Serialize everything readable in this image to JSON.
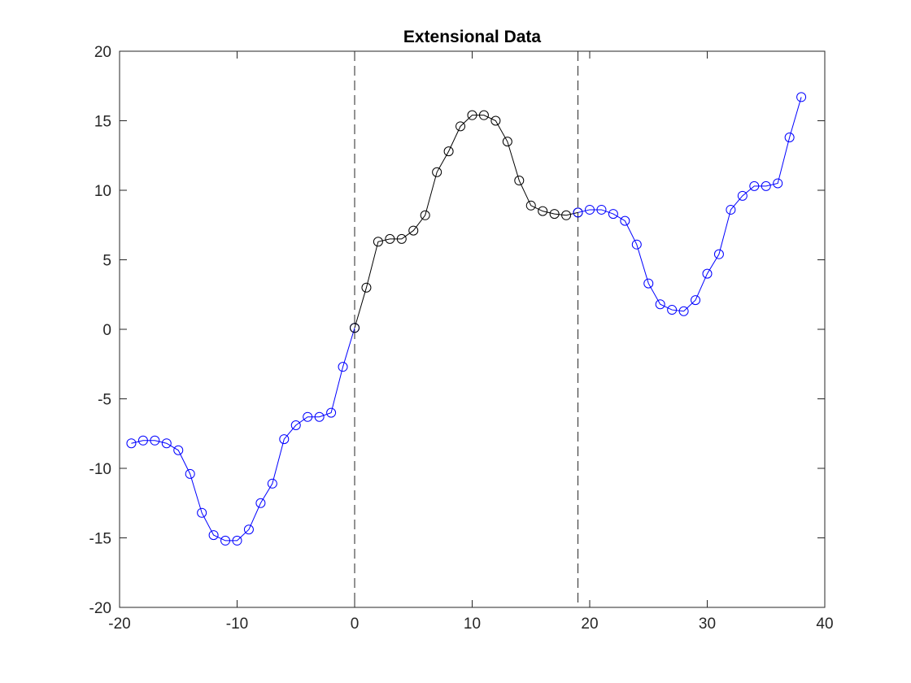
{
  "chart_data": {
    "type": "line",
    "title": "Extensional Data",
    "xlabel": "",
    "ylabel": "",
    "xlim": [
      -20,
      40
    ],
    "ylim": [
      -20,
      20
    ],
    "xticks": [
      -20,
      -10,
      0,
      10,
      20,
      30,
      40
    ],
    "yticks": [
      -20,
      -15,
      -10,
      -5,
      0,
      5,
      10,
      15,
      20
    ],
    "grid": false,
    "vlines": [
      0,
      19
    ],
    "series": [
      {
        "color": "#0000ff",
        "marker": "circle",
        "x": [
          -19,
          -18,
          -17,
          -16,
          -15,
          -14,
          -13,
          -12,
          -11,
          -10,
          -9,
          -8,
          -7,
          -6,
          -5,
          -4,
          -3,
          -2,
          -1,
          0
        ],
        "y": [
          -8.2,
          -8.0,
          -8.0,
          -8.2,
          -8.7,
          -10.4,
          -13.2,
          -14.8,
          -15.2,
          -15.2,
          -14.4,
          -12.5,
          -11.1,
          -7.9,
          -6.9,
          -6.3,
          -6.3,
          -6.0,
          -2.7,
          0.1
        ]
      },
      {
        "color": "#000000",
        "marker": "circle",
        "x": [
          0,
          1,
          2,
          3,
          4,
          5,
          6,
          7,
          8,
          9,
          10,
          11,
          12,
          13,
          14,
          15,
          16,
          17,
          18,
          19
        ],
        "y": [
          0.1,
          3.0,
          6.3,
          6.5,
          6.5,
          7.1,
          8.2,
          11.3,
          12.8,
          14.6,
          15.4,
          15.4,
          15.0,
          13.5,
          10.7,
          8.9,
          8.5,
          8.3,
          8.2,
          8.4
        ]
      },
      {
        "color": "#0000ff",
        "marker": "circle",
        "x": [
          19,
          20,
          21,
          22,
          23,
          24,
          25,
          26,
          27,
          28,
          29,
          30,
          31,
          32,
          33,
          34,
          35,
          36,
          37,
          38
        ],
        "y": [
          8.4,
          8.6,
          8.6,
          8.3,
          7.8,
          6.1,
          3.3,
          1.8,
          1.4,
          1.3,
          2.1,
          4.0,
          5.4,
          8.6,
          9.6,
          10.3,
          10.3,
          10.5,
          13.8,
          16.7
        ]
      }
    ],
    "colors": {
      "axes": "#262626",
      "vline": "#262626"
    }
  }
}
